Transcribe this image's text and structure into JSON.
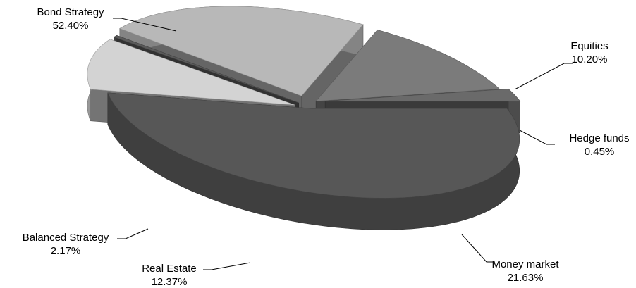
{
  "chart_data": {
    "type": "pie",
    "style": "3d-exploded",
    "title": "",
    "legend": "none",
    "slices": [
      {
        "name": "Bond Strategy",
        "value": 52.4,
        "label": "52.40%",
        "color": "#575757",
        "label_side": "left"
      },
      {
        "name": "Equities",
        "value": 10.2,
        "label": "10.20%",
        "color": "#d3d3d3",
        "label_side": "right"
      },
      {
        "name": "Hedge funds",
        "value": 0.45,
        "label": "0.45%",
        "color": "#5a5a5a",
        "label_side": "right"
      },
      {
        "name": "Money market",
        "value": 21.63,
        "label": "21.63%",
        "color": "#b8b8b8",
        "label_side": "right"
      },
      {
        "name": "Real Estate",
        "value": 12.37,
        "label": "12.37%",
        "color": "#7b7b7b",
        "label_side": "left"
      },
      {
        "name": "Balanced Strategy",
        "value": 2.17,
        "label": "2.17%",
        "color": "#6a6a6a",
        "label_side": "left"
      }
    ]
  }
}
